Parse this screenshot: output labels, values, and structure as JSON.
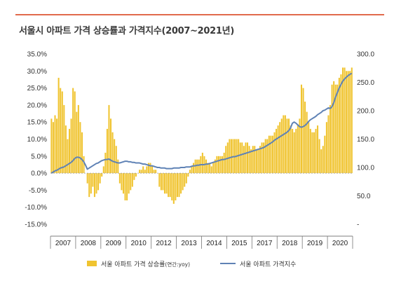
{
  "title": "서울시 아파트 가격 상승률과 가격지수(2007~2021년)",
  "chart_data": {
    "type": "bar+line",
    "title": "서울시 아파트 가격 상승률과 가격지수(2007~2021년)",
    "left_axis": {
      "range": [
        -15,
        35
      ],
      "ticks": [
        "35.0%",
        "30.0%",
        "25.0%",
        "20.0%",
        "15.0%",
        "10.0%",
        "5.0%",
        "0.0%",
        "-5.0%",
        "-10.0%",
        "-15.0%"
      ]
    },
    "right_axis": {
      "range": [
        0,
        300
      ],
      "ticks": [
        "300.0",
        "250.0",
        "200.0",
        "150.0",
        "100.0",
        "50.0",
        "-"
      ]
    },
    "x_axis": {
      "unit": "monthly, 2007-2020",
      "year_labels": [
        "2007",
        "2008",
        "2009",
        "2010",
        "2012",
        "2013",
        "2014",
        "2015",
        "2017",
        "2018",
        "2019",
        "2020"
      ]
    },
    "legend": {
      "bar": "서울 아파트 가격 상승률",
      "bar_suffix": "(연간:yoy)",
      "line": "서울 아파트 가격지수",
      "position": "bottom"
    },
    "colors": {
      "bar": "#f0c430",
      "line": "#5f82b5",
      "accent": "#e16a4c"
    },
    "series": [
      {
        "name": "서울 아파트 가격 상승률",
        "axis": "left",
        "values": [
          16,
          15,
          17,
          16,
          28,
          25,
          24,
          20,
          14,
          10,
          13,
          16,
          25,
          24,
          18,
          20,
          15,
          12,
          5,
          0,
          -3,
          -7,
          -6,
          -4,
          -7,
          -6,
          -5,
          -3,
          -1,
          2,
          6,
          13,
          20,
          16,
          12,
          10,
          8,
          4,
          -3,
          -5,
          -6,
          -8,
          -8,
          -6,
          -5,
          -4,
          -2,
          -1,
          0,
          1,
          1,
          2,
          1,
          2,
          3,
          3,
          2,
          1,
          1,
          0,
          -4,
          -5,
          -5,
          -6,
          -6,
          -7,
          -7,
          -8,
          -9,
          -8,
          -7,
          -7,
          -6,
          -5,
          -4,
          -3,
          -1,
          1,
          2,
          3,
          4,
          4,
          4,
          5,
          6,
          5,
          4,
          3,
          3,
          2,
          3,
          4,
          5,
          5,
          5,
          5,
          6,
          8,
          9,
          10,
          10,
          10,
          10,
          10,
          10,
          9,
          9,
          8,
          9,
          9,
          8,
          7,
          8,
          8,
          7,
          7,
          8,
          9,
          9,
          10,
          10,
          11,
          11,
          11,
          12,
          13,
          14,
          15,
          16,
          17,
          17,
          16,
          16,
          14,
          13,
          12,
          13,
          14,
          16,
          26,
          25,
          21,
          18,
          15,
          13,
          12,
          12,
          13,
          14,
          10,
          7,
          8,
          11,
          15,
          17,
          20,
          26,
          27,
          26,
          26,
          28,
          29,
          31,
          31,
          30,
          30,
          30,
          31
        ]
      },
      {
        "name": "서울 아파트 가격지수",
        "axis": "right",
        "values": [
          90,
          92,
          94,
          95,
          97,
          99,
          100,
          101,
          103,
          105,
          107,
          109,
          112,
          116,
          118,
          118,
          117,
          114,
          110,
          104,
          97,
          99,
          101,
          103,
          105,
          107,
          108,
          110,
          112,
          113,
          114,
          114,
          115,
          113,
          111,
          110,
          109,
          108,
          108,
          109,
          110,
          111,
          111,
          110,
          110,
          109,
          109,
          108,
          108,
          108,
          107,
          106,
          106,
          105,
          104,
          103,
          103,
          102,
          101,
          100,
          100,
          99,
          99,
          99,
          98,
          98,
          98,
          98,
          99,
          99,
          99,
          99,
          100,
          100,
          100,
          101,
          101,
          101,
          102,
          103,
          103,
          104,
          104,
          105,
          105,
          105,
          106,
          106,
          107,
          108,
          109,
          110,
          111,
          112,
          113,
          114,
          114,
          115,
          116,
          117,
          118,
          119,
          119,
          120,
          121,
          122,
          123,
          124,
          125,
          126,
          127,
          128,
          129,
          130,
          131,
          132,
          133,
          134,
          135,
          137,
          139,
          141,
          143,
          145,
          148,
          150,
          152,
          154,
          156,
          158,
          160,
          162,
          165,
          170,
          178,
          180,
          178,
          175,
          172,
          171,
          172,
          174,
          177,
          181,
          184,
          186,
          188,
          190,
          193,
          195,
          197,
          200,
          201,
          203,
          205,
          204,
          207,
          214,
          224,
          232,
          240,
          246,
          252,
          256,
          259,
          262,
          264,
          266
        ]
      }
    ]
  }
}
